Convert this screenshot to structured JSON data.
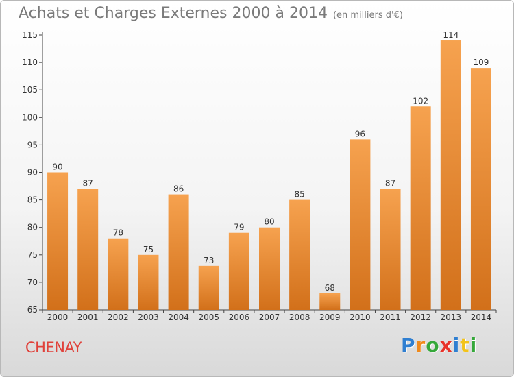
{
  "header": {
    "title": "Achats et Charges Externes 2000 à 2014",
    "unit": "(en milliers d'€)"
  },
  "footer": {
    "commune": "CHENAY",
    "logo_letters": [
      {
        "char": "P",
        "color": "#2f7fd1"
      },
      {
        "char": "r",
        "color": "#f08a1c"
      },
      {
        "char": "o",
        "color": "#35a83a"
      },
      {
        "char": "x",
        "color": "#e8332a"
      },
      {
        "char": "i",
        "color": "#2f7fd1"
      },
      {
        "char": "t",
        "color": "#f2c31b"
      },
      {
        "char": "i",
        "color": "#35a83a"
      }
    ]
  },
  "colors": {
    "bar_top": "#f6a24f",
    "bar_bottom": "#d2701a",
    "axis": "#444444",
    "grid": "#dddddd"
  },
  "chart_data": {
    "type": "bar",
    "title": "Achats et Charges Externes 2000 à 2014",
    "subtitle": "(en milliers d'€)",
    "categories": [
      "2000",
      "2001",
      "2002",
      "2003",
      "2004",
      "2005",
      "2006",
      "2007",
      "2008",
      "2009",
      "2010",
      "2011",
      "2012",
      "2013",
      "2014"
    ],
    "values": [
      90,
      87,
      78,
      75,
      86,
      73,
      79,
      80,
      85,
      68,
      96,
      87,
      102,
      114,
      109
    ],
    "xlabel": "",
    "ylabel": "",
    "ylim": [
      65,
      115
    ],
    "yticks": [
      65,
      70,
      75,
      80,
      85,
      90,
      95,
      100,
      105,
      110,
      115
    ],
    "grid": false,
    "legend": "none"
  }
}
